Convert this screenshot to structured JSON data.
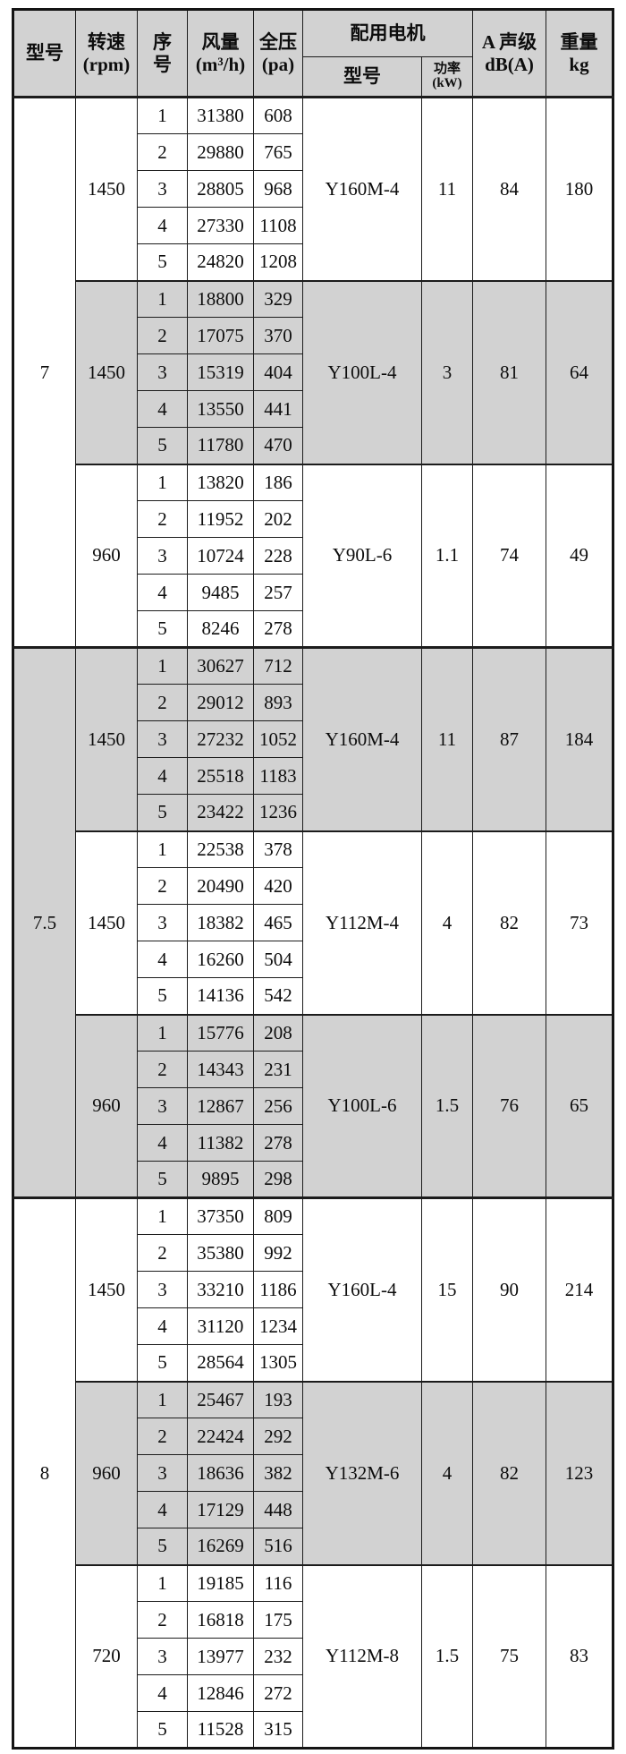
{
  "header": {
    "model": "型号",
    "speed": "转速\n(rpm)",
    "index": "序\n号",
    "airflow": "风量\n(m³/h)",
    "pressure": "全压\n(pa)",
    "motor_group": "配用电机",
    "motor_model": "型号",
    "motor_power": "功率\n(kW)",
    "noise": "A 声级\ndB(A)",
    "weight": "重量\nkg"
  },
  "table": {
    "models": [
      {
        "label": "7",
        "groups": [
          {
            "rpm": "1450",
            "shaded": false,
            "rows": [
              [
                "1",
                "31380",
                "608"
              ],
              [
                "2",
                "29880",
                "765"
              ],
              [
                "3",
                "28805",
                "968"
              ],
              [
                "4",
                "27330",
                "1108"
              ],
              [
                "5",
                "24820",
                "1208"
              ]
            ],
            "motor": "Y160M-4",
            "power_kw": "11",
            "noise_db": "84",
            "weight_kg": "180"
          },
          {
            "rpm": "1450",
            "shaded": true,
            "rows": [
              [
                "1",
                "18800",
                "329"
              ],
              [
                "2",
                "17075",
                "370"
              ],
              [
                "3",
                "15319",
                "404"
              ],
              [
                "4",
                "13550",
                "441"
              ],
              [
                "5",
                "11780",
                "470"
              ]
            ],
            "motor": "Y100L-4",
            "power_kw": "3",
            "noise_db": "81",
            "weight_kg": "64"
          },
          {
            "rpm": "960",
            "shaded": false,
            "rows": [
              [
                "1",
                "13820",
                "186"
              ],
              [
                "2",
                "11952",
                "202"
              ],
              [
                "3",
                "10724",
                "228"
              ],
              [
                "4",
                "9485",
                "257"
              ],
              [
                "5",
                "8246",
                "278"
              ]
            ],
            "motor": "Y90L-6",
            "power_kw": "1.1",
            "noise_db": "74",
            "weight_kg": "49"
          }
        ]
      },
      {
        "label": "7.5",
        "groups": [
          {
            "rpm": "1450",
            "shaded": true,
            "rows": [
              [
                "1",
                "30627",
                "712"
              ],
              [
                "2",
                "29012",
                "893"
              ],
              [
                "3",
                "27232",
                "1052"
              ],
              [
                "4",
                "25518",
                "1183"
              ],
              [
                "5",
                "23422",
                "1236"
              ]
            ],
            "motor": "Y160M-4",
            "power_kw": "11",
            "noise_db": "87",
            "weight_kg": "184"
          },
          {
            "rpm": "1450",
            "shaded": false,
            "rows": [
              [
                "1",
                "22538",
                "378"
              ],
              [
                "2",
                "20490",
                "420"
              ],
              [
                "3",
                "18382",
                "465"
              ],
              [
                "4",
                "16260",
                "504"
              ],
              [
                "5",
                "14136",
                "542"
              ]
            ],
            "motor": "Y112M-4",
            "power_kw": "4",
            "noise_db": "82",
            "weight_kg": "73"
          },
          {
            "rpm": "960",
            "shaded": true,
            "rows": [
              [
                "1",
                "15776",
                "208"
              ],
              [
                "2",
                "14343",
                "231"
              ],
              [
                "3",
                "12867",
                "256"
              ],
              [
                "4",
                "11382",
                "278"
              ],
              [
                "5",
                "9895",
                "298"
              ]
            ],
            "motor": "Y100L-6",
            "power_kw": "1.5",
            "noise_db": "76",
            "weight_kg": "65"
          }
        ]
      },
      {
        "label": "8",
        "groups": [
          {
            "rpm": "1450",
            "shaded": false,
            "rows": [
              [
                "1",
                "37350",
                "809"
              ],
              [
                "2",
                "35380",
                "992"
              ],
              [
                "3",
                "33210",
                "1186"
              ],
              [
                "4",
                "31120",
                "1234"
              ],
              [
                "5",
                "28564",
                "1305"
              ]
            ],
            "motor": "Y160L-4",
            "power_kw": "15",
            "noise_db": "90",
            "weight_kg": "214"
          },
          {
            "rpm": "960",
            "shaded": true,
            "rows": [
              [
                "1",
                "25467",
                "193"
              ],
              [
                "2",
                "22424",
                "292"
              ],
              [
                "3",
                "18636",
                "382"
              ],
              [
                "4",
                "17129",
                "448"
              ],
              [
                "5",
                "16269",
                "516"
              ]
            ],
            "motor": "Y132M-6",
            "power_kw": "4",
            "noise_db": "82",
            "weight_kg": "123"
          },
          {
            "rpm": "720",
            "shaded": false,
            "rows": [
              [
                "1",
                "19185",
                "116"
              ],
              [
                "2",
                "16818",
                "175"
              ],
              [
                "3",
                "13977",
                "232"
              ],
              [
                "4",
                "12846",
                "272"
              ],
              [
                "5",
                "11528",
                "315"
              ]
            ],
            "motor": "Y112M-8",
            "power_kw": "1.5",
            "noise_db": "75",
            "weight_kg": "83"
          }
        ]
      }
    ]
  },
  "colors": {
    "row_shade": "#d2d2d2",
    "header_shade": "#d2d2d2",
    "border": "#1c1c1c",
    "background": "#ffffff"
  }
}
